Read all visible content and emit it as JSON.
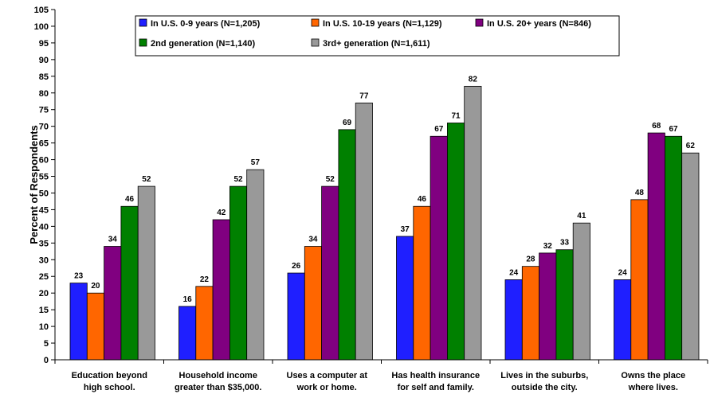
{
  "chart_data": {
    "type": "bar",
    "title": "",
    "xlabel": "",
    "ylabel": "Percent of Respondents",
    "ylim": [
      0,
      105
    ],
    "ytick_step": 5,
    "grid": false,
    "legend_position": "top-center",
    "categories": [
      [
        "Education beyond",
        "high school."
      ],
      [
        "Household income",
        "greater than $35,000."
      ],
      [
        "Uses a computer at",
        "work or home."
      ],
      [
        "Has health insurance",
        "for self and family."
      ],
      [
        "Lives in the suburbs,",
        "outside the city."
      ],
      [
        "Owns the place",
        "where lives."
      ]
    ],
    "series": [
      {
        "name": "In U.S. 0-9 years (N=1,205)",
        "color": "#1f1fff",
        "values": [
          23,
          16,
          26,
          37,
          24,
          24
        ]
      },
      {
        "name": "In U.S. 10-19 years (N=1,129)",
        "color": "#ff6600",
        "values": [
          20,
          22,
          34,
          46,
          28,
          48
        ]
      },
      {
        "name": "In U.S. 20+ years (N=846)",
        "color": "#800080",
        "values": [
          34,
          42,
          52,
          67,
          32,
          68
        ]
      },
      {
        "name": "2nd generation (N=1,140)",
        "color": "#008000",
        "values": [
          46,
          52,
          69,
          71,
          33,
          67
        ]
      },
      {
        "name": "3rd+ generation (N=1,611)",
        "color": "#999999",
        "values": [
          52,
          57,
          77,
          82,
          41,
          62
        ]
      }
    ]
  }
}
